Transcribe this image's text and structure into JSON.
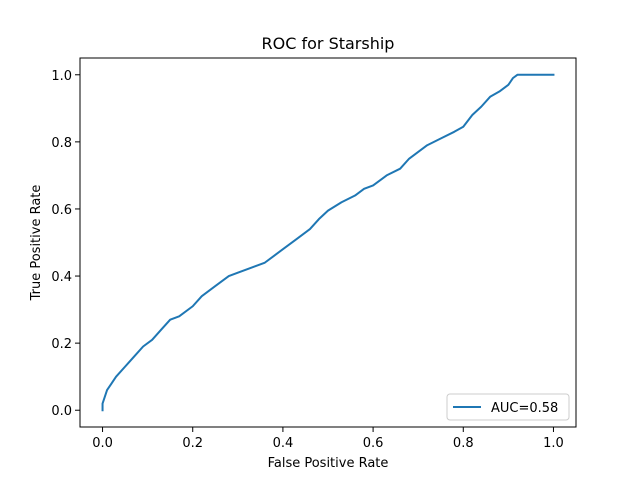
{
  "chart_data": {
    "type": "line",
    "title": "ROC for Starship",
    "xlabel": "False Positive Rate",
    "ylabel": "True Positive Rate",
    "xlim": [
      -0.05,
      1.05
    ],
    "ylim": [
      -0.05,
      1.05
    ],
    "xticks": [
      0.0,
      0.2,
      0.4,
      0.6,
      0.8,
      1.0
    ],
    "yticks": [
      0.0,
      0.2,
      0.4,
      0.6,
      0.8,
      1.0
    ],
    "xtick_labels": [
      "0.0",
      "0.2",
      "0.4",
      "0.6",
      "0.8",
      "1.0"
    ],
    "ytick_labels": [
      "0.0",
      "0.2",
      "0.4",
      "0.6",
      "0.8",
      "1.0"
    ],
    "grid": false,
    "legend_position": "lower-right",
    "series": [
      {
        "name": "AUC=0.58",
        "color": "#1f77b4",
        "x": [
          0.0,
          0.0,
          0.005,
          0.01,
          0.02,
          0.03,
          0.05,
          0.07,
          0.09,
          0.11,
          0.13,
          0.15,
          0.17,
          0.2,
          0.22,
          0.25,
          0.28,
          0.3,
          0.33,
          0.36,
          0.38,
          0.4,
          0.43,
          0.46,
          0.48,
          0.5,
          0.53,
          0.56,
          0.58,
          0.6,
          0.63,
          0.66,
          0.68,
          0.7,
          0.72,
          0.75,
          0.78,
          0.8,
          0.82,
          0.84,
          0.86,
          0.88,
          0.9,
          0.91,
          0.92,
          0.95,
          1.0
        ],
        "y": [
          0.0,
          0.02,
          0.04,
          0.06,
          0.08,
          0.1,
          0.13,
          0.16,
          0.19,
          0.21,
          0.24,
          0.27,
          0.28,
          0.31,
          0.34,
          0.37,
          0.4,
          0.41,
          0.425,
          0.44,
          0.46,
          0.48,
          0.51,
          0.54,
          0.57,
          0.595,
          0.62,
          0.64,
          0.66,
          0.67,
          0.7,
          0.72,
          0.75,
          0.77,
          0.79,
          0.81,
          0.83,
          0.845,
          0.88,
          0.905,
          0.935,
          0.95,
          0.97,
          0.99,
          1.0,
          1.0,
          1.0
        ]
      }
    ],
    "legend": {
      "label": "AUC=0.58"
    }
  }
}
